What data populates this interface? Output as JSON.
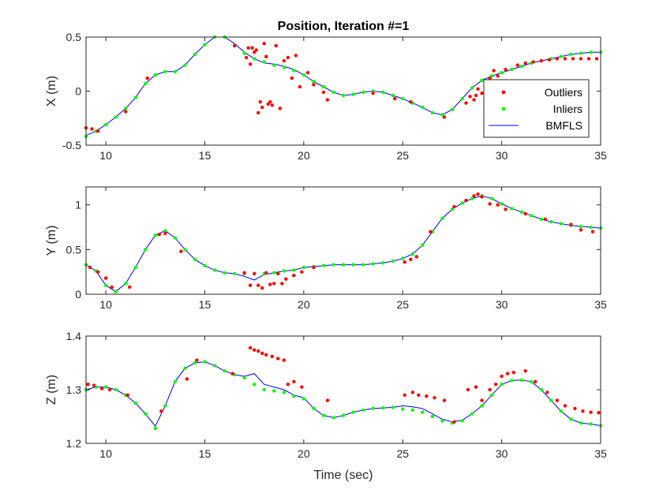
{
  "figure": {
    "xlabel": "Time (sec)"
  },
  "colors": {
    "outliers": "#ff0000",
    "inliers": "#00ff00",
    "bmfls": "#0000ff",
    "axes": "#262626"
  },
  "legend": {
    "items": [
      {
        "label": "Outliers",
        "marker": "dot",
        "color": "#ff0000"
      },
      {
        "label": "Inliers",
        "marker": "dot",
        "color": "#00ff00"
      },
      {
        "label": "BMFLS",
        "marker": "line",
        "color": "#0000ff"
      }
    ],
    "placement": "right (top subplot)"
  },
  "chart_data": [
    {
      "type": "scatter",
      "title": "Position, Iteration #=1",
      "xlabel": "",
      "ylabel": "X (m)",
      "xlim": [
        9,
        35
      ],
      "ylim": [
        -0.5,
        0.5
      ],
      "xticks": [
        10,
        15,
        20,
        25,
        30,
        35
      ],
      "yticks": [
        -0.5,
        0,
        0.5
      ],
      "ytick_labels": [
        "-0.5",
        "0",
        "0.5"
      ],
      "grid": false,
      "legend": "right",
      "series": [
        {
          "name": "BMFLS",
          "kind": "line",
          "x": [
            9,
            9.5,
            10,
            10.5,
            11,
            11.5,
            12,
            12.5,
            13,
            13.5,
            14,
            14.5,
            15,
            15.5,
            16,
            16.5,
            17,
            17.5,
            18,
            18.5,
            19,
            19.5,
            20,
            20.5,
            21,
            21.5,
            22,
            22.5,
            23,
            23.5,
            24,
            24.5,
            25,
            25.5,
            26,
            26.5,
            27,
            27.5,
            28,
            28.5,
            29,
            29.5,
            30,
            30.5,
            31,
            31.5,
            32,
            32.5,
            33,
            33.5,
            34,
            34.5,
            35
          ],
          "y": [
            -0.41,
            -0.37,
            -0.31,
            -0.24,
            -0.16,
            -0.06,
            0.07,
            0.15,
            0.18,
            0.18,
            0.24,
            0.34,
            0.43,
            0.5,
            0.5,
            0.44,
            0.36,
            0.3,
            0.26,
            0.25,
            0.23,
            0.2,
            0.15,
            0.09,
            0.04,
            -0.01,
            -0.04,
            -0.03,
            -0.01,
            0,
            -0.01,
            -0.04,
            -0.07,
            -0.11,
            -0.15,
            -0.2,
            -0.22,
            -0.17,
            -0.07,
            0.03,
            0.1,
            0.14,
            0.17,
            0.2,
            0.23,
            0.26,
            0.28,
            0.3,
            0.32,
            0.34,
            0.35,
            0.36,
            0.36
          ]
        },
        {
          "name": "Inliers",
          "kind": "dots",
          "x": [
            9,
            9.5,
            10,
            10.5,
            11,
            11.5,
            12,
            12.5,
            13,
            13.5,
            14,
            14.5,
            15,
            15.5,
            16,
            16.5,
            17,
            17.5,
            18,
            18.5,
            19,
            19.5,
            20,
            20.5,
            21,
            21.5,
            22,
            22.5,
            23,
            23.5,
            24,
            24.5,
            25,
            25.5,
            26,
            26.5,
            27,
            27.5,
            28,
            28.5,
            29,
            29.5,
            30,
            30.5,
            31,
            31.5,
            32,
            32.5,
            33,
            33.5,
            34,
            34.5,
            35
          ],
          "y": [
            -0.42,
            -0.37,
            -0.31,
            -0.24,
            -0.16,
            -0.06,
            0.07,
            0.15,
            0.18,
            0.18,
            0.24,
            0.34,
            0.43,
            0.5,
            0.5,
            0.42,
            0.35,
            0.3,
            0.27,
            0.24,
            0.22,
            0.19,
            0.15,
            0.09,
            0.04,
            -0.01,
            -0.04,
            -0.03,
            -0.01,
            0,
            -0.01,
            -0.04,
            -0.07,
            -0.11,
            -0.15,
            -0.2,
            -0.22,
            -0.17,
            -0.07,
            0.03,
            0.1,
            0.14,
            0.17,
            0.2,
            0.23,
            0.26,
            0.28,
            0.3,
            0.32,
            0.34,
            0.35,
            0.36,
            0.36
          ]
        },
        {
          "name": "Outliers",
          "kind": "dots",
          "x": [
            9,
            9.3,
            9.6,
            11,
            12.1,
            16.5,
            17.1,
            17.2,
            17.3,
            17.4,
            17.5,
            17.6,
            17.7,
            17.8,
            17.9,
            18,
            18.1,
            18.2,
            18.3,
            18.4,
            18.6,
            18.8,
            19,
            19.2,
            19.4,
            19.6,
            19.8,
            20.2,
            20.5,
            21,
            21.2,
            23.5,
            24.6,
            25.4,
            27.1,
            28.2,
            28.4,
            28.6,
            28.7,
            28.8,
            29,
            29.2,
            29.4,
            29.6,
            29.8,
            30.2,
            30.8,
            31.2,
            31.6,
            32,
            32.4,
            32.8,
            33.2,
            33.6,
            34,
            34.4,
            34.8
          ],
          "y": [
            -0.34,
            -0.35,
            -0.37,
            -0.19,
            0.12,
            0.42,
            0.31,
            0.4,
            0.25,
            0.4,
            0.36,
            0.38,
            -0.2,
            -0.1,
            -0.15,
            0.44,
            0.32,
            -0.12,
            -0.1,
            -0.13,
            0.42,
            -0.16,
            0.28,
            0.31,
            0.12,
            0.33,
            0.04,
            0.17,
            0.06,
            -0.01,
            -0.08,
            -0.02,
            -0.07,
            -0.1,
            -0.24,
            -0.11,
            -0.05,
            -0.08,
            -0.04,
            0.02,
            -0.02,
            0.04,
            0.12,
            0.19,
            0.14,
            0.2,
            0.24,
            0.26,
            0.27,
            0.28,
            0.29,
            0.3,
            0.3,
            0.3,
            0.3,
            0.3,
            0.3
          ]
        }
      ]
    },
    {
      "type": "scatter",
      "title": "",
      "xlabel": "",
      "ylabel": "Y (m)",
      "xlim": [
        9,
        35
      ],
      "ylim": [
        0,
        1.2
      ],
      "xticks": [
        10,
        15,
        20,
        25,
        30,
        35
      ],
      "yticks": [
        0,
        0.5,
        1
      ],
      "ytick_labels": [
        "0",
        "0.5",
        "1"
      ],
      "grid": false,
      "series": [
        {
          "name": "BMFLS",
          "kind": "line",
          "x": [
            9,
            9.5,
            10,
            10.5,
            11,
            11.5,
            12,
            12.5,
            13,
            13.5,
            14,
            14.5,
            15,
            15.5,
            16,
            16.5,
            17,
            17.5,
            18,
            18.5,
            19,
            19.5,
            20,
            20.5,
            21,
            21.5,
            22,
            22.5,
            23,
            23.5,
            24,
            24.5,
            25,
            25.5,
            26,
            26.5,
            27,
            27.5,
            28,
            28.5,
            29,
            29.5,
            30,
            30.5,
            31,
            31.5,
            32,
            32.5,
            33,
            33.5,
            34,
            34.5,
            35
          ],
          "y": [
            0.33,
            0.26,
            0.1,
            0.03,
            0.12,
            0.3,
            0.5,
            0.66,
            0.71,
            0.63,
            0.5,
            0.39,
            0.32,
            0.27,
            0.24,
            0.23,
            0.2,
            0.16,
            0.22,
            0.24,
            0.26,
            0.27,
            0.3,
            0.31,
            0.32,
            0.33,
            0.33,
            0.33,
            0.33,
            0.34,
            0.35,
            0.37,
            0.4,
            0.45,
            0.55,
            0.7,
            0.85,
            0.95,
            1.02,
            1.07,
            1.1,
            1.07,
            1.01,
            0.96,
            0.92,
            0.88,
            0.84,
            0.81,
            0.79,
            0.77,
            0.76,
            0.75,
            0.74
          ]
        },
        {
          "name": "Inliers",
          "kind": "dots",
          "x": [
            9,
            9.5,
            10,
            10.5,
            11,
            11.5,
            12,
            12.5,
            13,
            13.5,
            14,
            14.5,
            15,
            15.5,
            16,
            16.5,
            17,
            17.5,
            18,
            18.5,
            19,
            19.5,
            20,
            20.5,
            21,
            21.5,
            22,
            22.5,
            23,
            23.5,
            24,
            24.5,
            25,
            25.5,
            26,
            26.5,
            27,
            27.5,
            28,
            28.5,
            29,
            29.5,
            30,
            30.5,
            31,
            31.5,
            32,
            32.5,
            33,
            33.5,
            34,
            34.5,
            35
          ],
          "y": [
            0.33,
            0.26,
            0.1,
            0.03,
            0.12,
            0.3,
            0.5,
            0.66,
            0.71,
            0.63,
            0.5,
            0.39,
            0.32,
            0.27,
            0.24,
            0.23,
            0.23,
            0.23,
            0.23,
            0.24,
            0.26,
            0.27,
            0.3,
            0.31,
            0.32,
            0.33,
            0.33,
            0.33,
            0.33,
            0.34,
            0.35,
            0.37,
            0.4,
            0.45,
            0.55,
            0.7,
            0.85,
            0.95,
            1.02,
            1.07,
            1.1,
            1.07,
            1.01,
            0.96,
            0.92,
            0.88,
            0.84,
            0.81,
            0.79,
            0.77,
            0.76,
            0.75,
            0.74
          ]
        },
        {
          "name": "Outliers",
          "kind": "dots",
          "x": [
            9.2,
            9.6,
            10,
            10.3,
            11.2,
            12.7,
            13,
            13.8,
            17,
            17.3,
            17.5,
            17.7,
            17.9,
            18.1,
            18.3,
            18.5,
            18.7,
            18.9,
            19.1,
            19.5,
            19.9,
            20.5,
            25.1,
            25.4,
            25.7,
            26.4,
            27.6,
            28.2,
            28.6,
            28.8,
            29,
            29.4,
            29.8,
            30.2,
            31.2,
            32.2,
            33.5,
            34,
            34.6
          ],
          "y": [
            0.3,
            0.25,
            0.18,
            0.08,
            0.08,
            0.67,
            0.68,
            0.48,
            0.24,
            0.1,
            0.23,
            0.1,
            0.07,
            0.24,
            0.11,
            0.12,
            0.23,
            0.12,
            0.17,
            0.21,
            0.25,
            0.3,
            0.36,
            0.39,
            0.42,
            0.7,
            0.98,
            1.05,
            1.1,
            1.12,
            1.09,
            1.01,
            1.0,
            0.95,
            0.9,
            0.84,
            0.78,
            0.72,
            0.7
          ]
        }
      ]
    },
    {
      "type": "scatter",
      "title": "",
      "xlabel": "Time (sec)",
      "ylabel": "Z (m)",
      "xlim": [
        9,
        35
      ],
      "ylim": [
        1.2,
        1.4
      ],
      "xticks": [
        10,
        15,
        20,
        25,
        30,
        35
      ],
      "yticks": [
        1.2,
        1.3,
        1.4
      ],
      "ytick_labels": [
        "1.2",
        "1.3",
        "1.4"
      ],
      "grid": false,
      "series": [
        {
          "name": "BMFLS",
          "kind": "line",
          "x": [
            9,
            9.5,
            10,
            10.5,
            11,
            11.5,
            12,
            12.5,
            13,
            13.5,
            14,
            14.5,
            15,
            15.5,
            16,
            16.5,
            17,
            17.5,
            18,
            18.5,
            19,
            19.5,
            20,
            20.5,
            21,
            21.5,
            22,
            22.5,
            23,
            23.5,
            24,
            24.5,
            25,
            25.5,
            26,
            26.5,
            27,
            27.5,
            28,
            28.5,
            29,
            29.5,
            30,
            30.5,
            31,
            31.5,
            32,
            32.5,
            33,
            33.5,
            34,
            34.5,
            35
          ],
          "y": [
            1.3,
            1.305,
            1.305,
            1.3,
            1.29,
            1.275,
            1.255,
            1.232,
            1.27,
            1.315,
            1.34,
            1.35,
            1.352,
            1.345,
            1.335,
            1.328,
            1.325,
            1.33,
            1.31,
            1.305,
            1.3,
            1.29,
            1.285,
            1.265,
            1.252,
            1.248,
            1.252,
            1.258,
            1.262,
            1.265,
            1.266,
            1.267,
            1.27,
            1.268,
            1.265,
            1.255,
            1.245,
            1.24,
            1.243,
            1.255,
            1.27,
            1.29,
            1.31,
            1.317,
            1.318,
            1.315,
            1.3,
            1.28,
            1.26,
            1.245,
            1.238,
            1.236,
            1.233
          ]
        },
        {
          "name": "Inliers",
          "kind": "dots",
          "x": [
            9,
            9.5,
            10,
            10.5,
            11,
            11.5,
            12,
            12.5,
            13,
            13.5,
            14,
            14.5,
            15,
            15.5,
            16,
            16.5,
            17,
            17.5,
            18,
            18.5,
            19,
            19.5,
            20,
            20.5,
            21,
            21.5,
            22,
            22.5,
            23,
            23.5,
            24,
            24.5,
            25,
            25.5,
            26,
            26.5,
            27,
            27.5,
            28,
            28.5,
            29,
            29.5,
            30,
            30.5,
            31,
            31.5,
            32,
            32.5,
            33,
            33.5,
            34,
            34.5,
            35
          ],
          "y": [
            1.3,
            1.305,
            1.305,
            1.3,
            1.29,
            1.275,
            1.255,
            1.228,
            1.27,
            1.315,
            1.34,
            1.35,
            1.352,
            1.345,
            1.335,
            1.328,
            1.322,
            1.31,
            1.3,
            1.298,
            1.295,
            1.288,
            1.283,
            1.265,
            1.252,
            1.248,
            1.252,
            1.258,
            1.262,
            1.265,
            1.266,
            1.267,
            1.264,
            1.262,
            1.258,
            1.25,
            1.242,
            1.238,
            1.242,
            1.255,
            1.27,
            1.29,
            1.31,
            1.317,
            1.318,
            1.315,
            1.3,
            1.28,
            1.26,
            1.245,
            1.238,
            1.236,
            1.233
          ]
        },
        {
          "name": "Outliers",
          "kind": "dots",
          "x": [
            9.1,
            9.4,
            9.8,
            10.2,
            11.1,
            12.8,
            14.1,
            14.6,
            16.4,
            17.3,
            17.5,
            17.7,
            17.9,
            18.1,
            18.4,
            18.7,
            19,
            19.2,
            19.5,
            19.9,
            21.2,
            25.1,
            25.5,
            25.8,
            26.2,
            26.6,
            27.1,
            27.6,
            28.3,
            28.7,
            29,
            29.4,
            29.7,
            30,
            30.3,
            30.6,
            31.2,
            31.7,
            32.3,
            32.8,
            33.2,
            33.7,
            34.1,
            34.5,
            34.9
          ],
          "y": [
            1.31,
            1.308,
            1.302,
            1.3,
            1.29,
            1.26,
            1.32,
            1.355,
            1.33,
            1.378,
            1.374,
            1.372,
            1.368,
            1.365,
            1.362,
            1.358,
            1.355,
            1.31,
            1.315,
            1.305,
            1.28,
            1.29,
            1.295,
            1.29,
            1.288,
            1.285,
            1.28,
            1.24,
            1.3,
            1.305,
            1.28,
            1.3,
            1.31,
            1.325,
            1.33,
            1.332,
            1.335,
            1.315,
            1.295,
            1.28,
            1.27,
            1.265,
            1.26,
            1.258,
            1.257
          ]
        }
      ]
    }
  ]
}
